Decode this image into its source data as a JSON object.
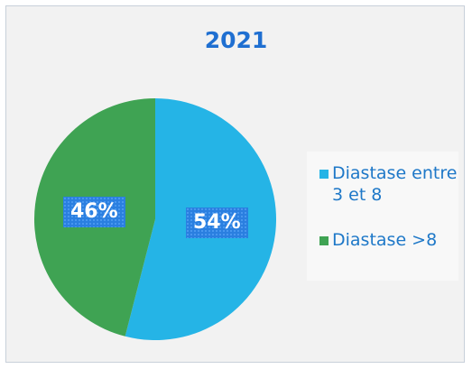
{
  "chart_data": {
    "type": "pie",
    "title": "2021",
    "categories": [
      "Diastase entre  3 et 8",
      "Diastase >8"
    ],
    "values": [
      54,
      46
    ],
    "labels": [
      "54%",
      "46%"
    ],
    "colors": [
      "#25b4e6",
      "#3fa353"
    ],
    "legend": "right"
  }
}
